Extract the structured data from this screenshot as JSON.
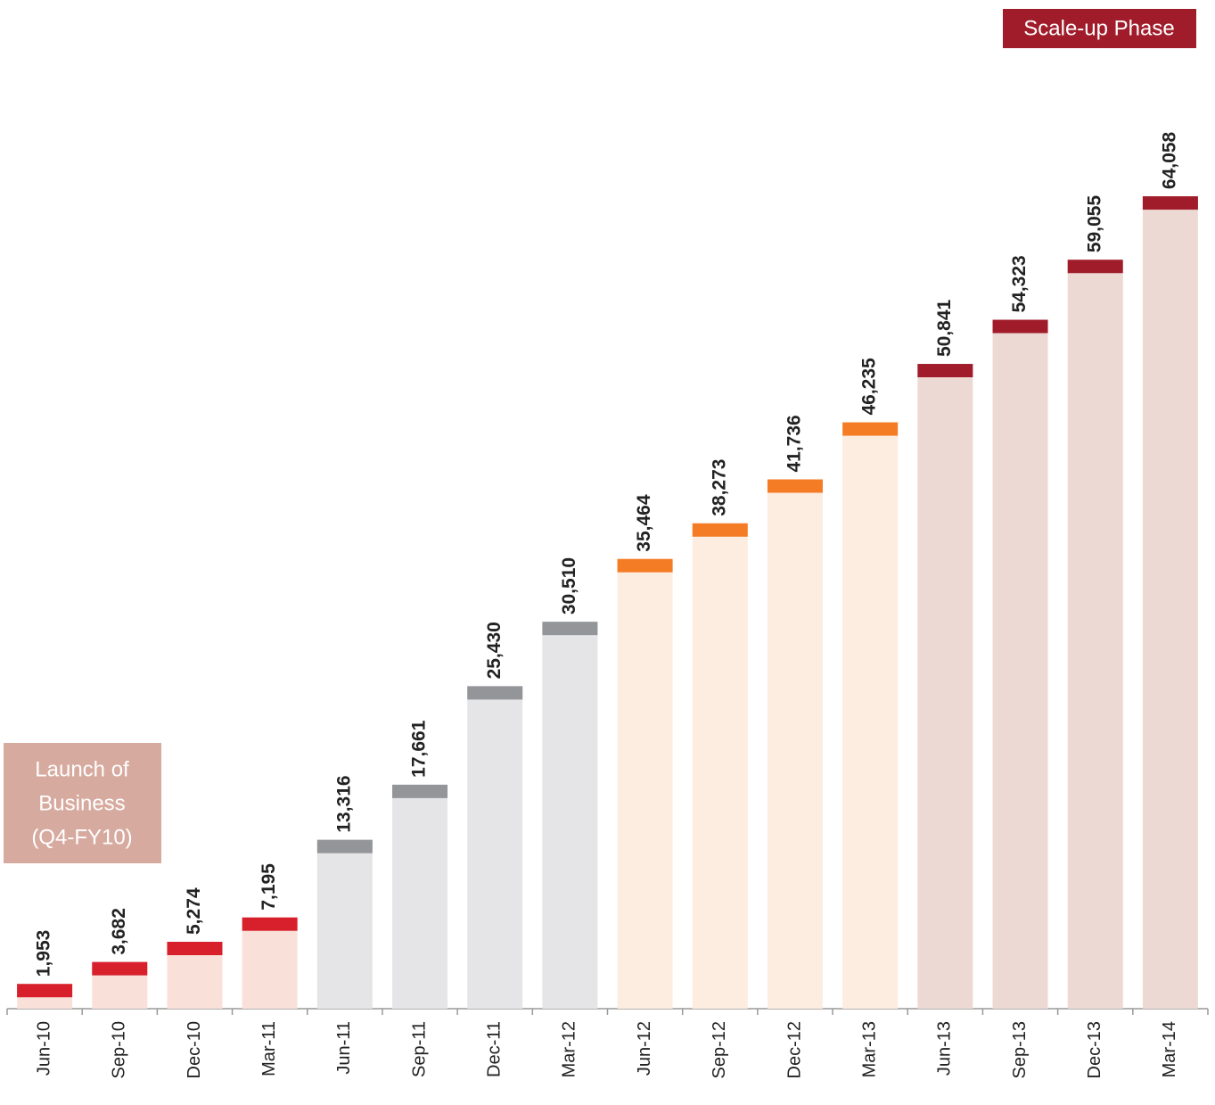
{
  "chart_data": {
    "type": "bar",
    "categories": [
      "Jun-10",
      "Sep-10",
      "Dec-10",
      "Mar-11",
      "Jun-11",
      "Sep-11",
      "Dec-11",
      "Mar-12",
      "Jun-12",
      "Sep-12",
      "Dec-12",
      "Mar-13",
      "Jun-13",
      "Sep-13",
      "Dec-13",
      "Mar-14"
    ],
    "values": [
      1953,
      3682,
      5274,
      7195,
      13316,
      17661,
      25430,
      30510,
      35464,
      38273,
      41736,
      46235,
      50841,
      54323,
      59055,
      64058
    ],
    "value_labels": [
      "1,953",
      "3,682",
      "5,274",
      "7,195",
      "13,316",
      "17,661",
      "25,430",
      "30,510",
      "35,464",
      "38,273",
      "41,736",
      "46,235",
      "50,841",
      "54,323",
      "59,055",
      "64,058"
    ],
    "bar_colors": [
      "#f9e1d9",
      "#f9e1d9",
      "#f9e1d9",
      "#f9e1d9",
      "#e5e5e7",
      "#e5e5e7",
      "#e5e5e7",
      "#e5e5e7",
      "#fdece0",
      "#fdece0",
      "#fdece0",
      "#fdece0",
      "#edd9d3",
      "#edd9d3",
      "#edd9d3",
      "#edd9d3"
    ],
    "cap_colors": [
      "#d7202c",
      "#d7202c",
      "#d7202c",
      "#d7202c",
      "#939598",
      "#939598",
      "#939598",
      "#939598",
      "#f47c25",
      "#f47c25",
      "#f47c25",
      "#f47c25",
      "#a01c2a",
      "#a01c2a",
      "#a01c2a",
      "#a01c2a"
    ],
    "ylim": [
      0,
      70000
    ],
    "annotations": {
      "scale_up": "Scale-up Phase",
      "launch": [
        "Launch of",
        "Business",
        "(Q4-FY10)"
      ]
    }
  }
}
